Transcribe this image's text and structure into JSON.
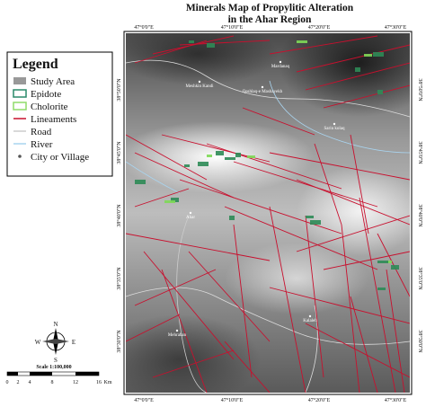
{
  "header": {
    "title": "Minerals Map of Propylitic Alteration",
    "subtitle": "in the Ahar Region"
  },
  "legend": {
    "title": "Legend",
    "items": [
      "Study Area",
      "Epidote",
      "Cholorite",
      "Lineaments",
      "Road",
      "River",
      "City or Village"
    ]
  },
  "coords": {
    "top": [
      "47°0'0\"E",
      "47°10'0\"E",
      "47°20'0\"E",
      "47°30'0\"E"
    ],
    "bottom": [
      "47°0'0\"E",
      "47°10'0\"E",
      "47°20'0\"E",
      "47°30'0\"E"
    ],
    "left": [
      "38°50'0\"N",
      "38°45'0\"N",
      "38°40'0\"N",
      "38°35'0\"N",
      "38°30'0\"N"
    ],
    "right": [
      "38°50'0\"N",
      "38°45'0\"N",
      "38°40'0\"N",
      "38°35'0\"N",
      "38°30'0\"N"
    ]
  },
  "places": [
    "Ahar",
    "Meshkin Kandi",
    "Qeshlaq-e Mashayekh",
    "Mardanaq",
    "Sarin kolaq",
    "Kalaleh",
    "Mehraban"
  ],
  "compass": {
    "n": "N",
    "s": "S",
    "e": "E",
    "w": "W"
  },
  "scale": {
    "label": "Scale 1:100,000",
    "ticks": [
      "0",
      "2",
      "4",
      "8",
      "12",
      "16"
    ],
    "unit": "Km"
  }
}
